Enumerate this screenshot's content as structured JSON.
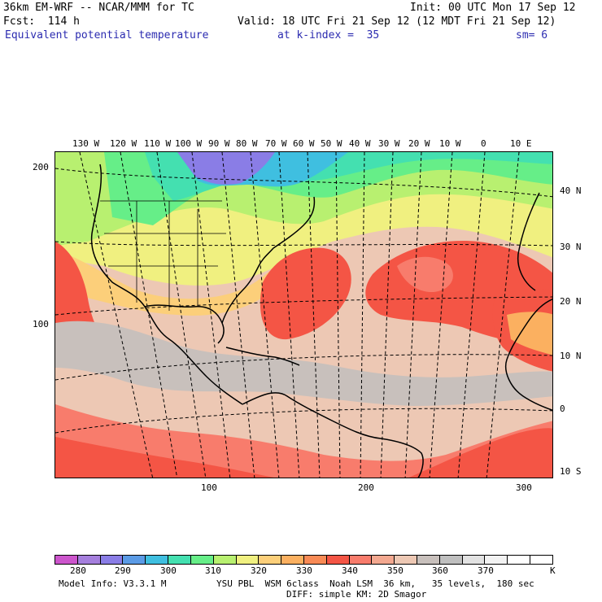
{
  "header": {
    "model": "36km EM-WRF -- NCAR/MMM for TC",
    "init": "Init: 00 UTC Mon 17 Sep 12",
    "forecast": "Fcst:  114 h",
    "valid": "Valid: 18 UTC Fri 21 Sep 12 (12 MDT Fri 21 Sep 12)",
    "field": "Equivalent potential temperature",
    "level": "at k-index =  35",
    "smoothing": "sm= 6"
  },
  "map": {
    "lon_labels": [
      "130 W",
      "120 W",
      "110 W",
      "100 W",
      "90 W",
      "80 W",
      "70 W",
      "60 W",
      "50 W",
      "40 W",
      "30 W",
      "20 W",
      "10 W",
      "0",
      "10 E"
    ],
    "lat_labels": [
      "40 N",
      "30 N",
      "20 N",
      "10 N",
      "0",
      "10 S"
    ],
    "x_ticks": [
      "100",
      "200",
      "300"
    ],
    "y_ticks": [
      "200",
      "100"
    ]
  },
  "colorbar": {
    "colors": [
      "#cc55cc",
      "#a57fdd",
      "#8a7de6",
      "#5b9be6",
      "#3fbfe0",
      "#44e0b0",
      "#66ee88",
      "#b8f070",
      "#f0f080",
      "#fccf7a",
      "#fbb060",
      "#f88a55",
      "#f45545",
      "#f87c6c",
      "#f3a890",
      "#edc8b4",
      "#c8c0bc",
      "#bfbfbf",
      "#e2e2e2",
      "#f2f2f2",
      "#ffffff",
      "#ffffff"
    ],
    "labels": [
      "280",
      "290",
      "300",
      "310",
      "320",
      "330",
      "340",
      "350",
      "360",
      "370"
    ],
    "unit": "K"
  },
  "footer": {
    "model_info": "Model Info: V3.3.1 M",
    "physics": "YSU PBL  WSM 6class  Noah LSM  36 km,   35 levels,  180 sec",
    "diffusion": "DIFF: simple KM: 2D Smagor"
  }
}
